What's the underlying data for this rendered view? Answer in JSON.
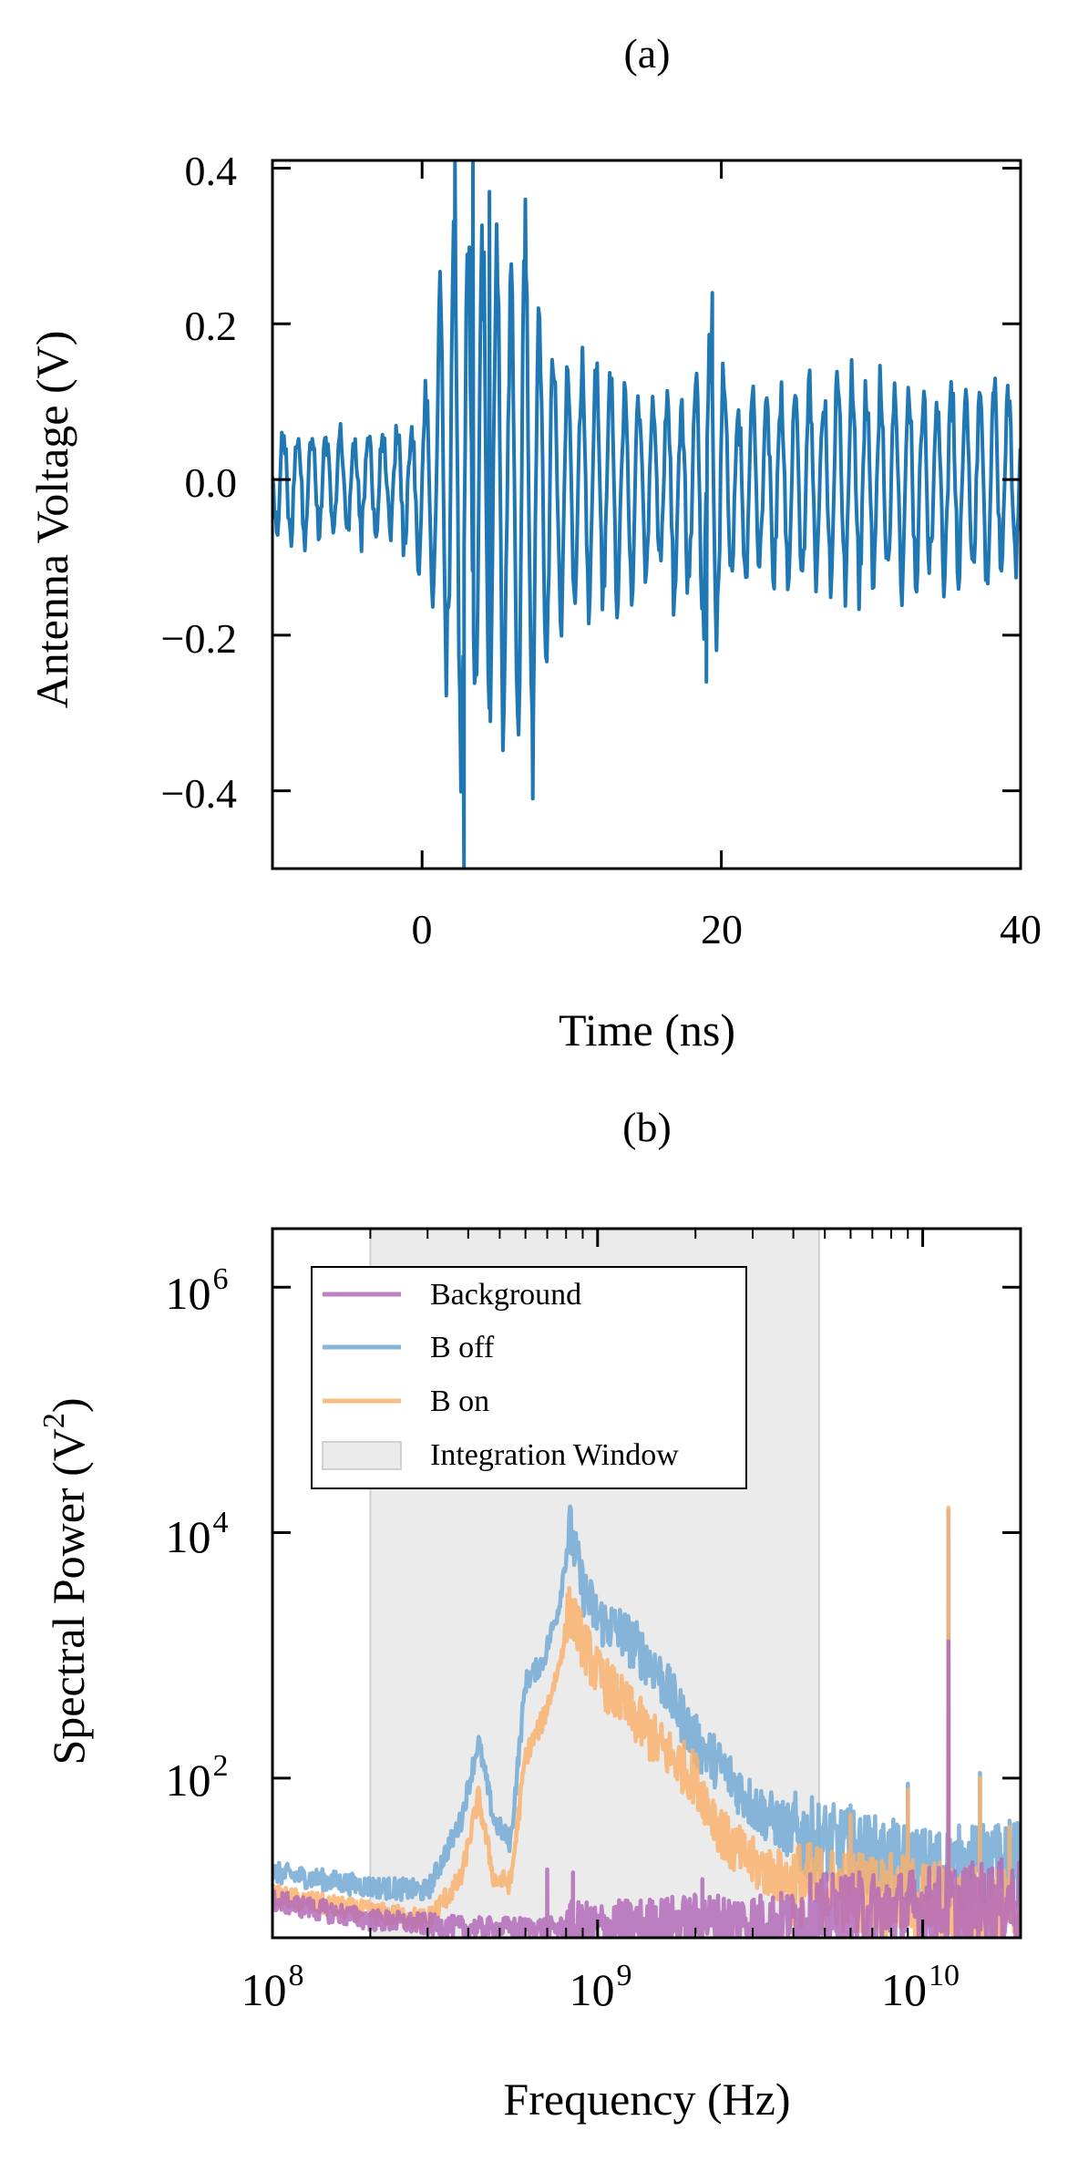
{
  "chart_data": [
    {
      "panel_label": "(a)",
      "type": "line",
      "xlabel": "Time (ns)",
      "ylabel": "Antenna Voltage (V)",
      "xlim": [
        -10,
        40
      ],
      "ylim": [
        -0.5,
        0.41
      ],
      "xticks": [
        0,
        20,
        40
      ],
      "xtick_labels": [
        "0",
        "20",
        "40"
      ],
      "yticks": [
        0.4,
        0.2,
        0.0,
        -0.2,
        -0.4
      ],
      "ytick_labels": [
        "0.4",
        "0.2",
        "0.0",
        "−0.2",
        "−0.4"
      ],
      "series": [
        {
          "name": "Antenna voltage",
          "color": "#1f77b4",
          "envelope": {
            "t": [
              -10,
              -2,
              0,
              1,
              2,
              2.5,
              3,
              4,
              5,
              6,
              7,
              8,
              9,
              10,
              12,
              14,
              16,
              18,
              19.5,
              21,
              24,
              28,
              32,
              36,
              40
            ],
            "upper": [
              0.07,
              0.07,
              0.1,
              0.24,
              0.35,
              0.41,
              0.4,
              0.38,
              0.36,
              0.3,
              0.37,
              0.25,
              0.2,
              0.16,
              0.16,
              0.14,
              0.13,
              0.14,
              0.24,
              0.12,
              0.14,
              0.16,
              0.14,
              0.14,
              0.14
            ],
            "lower": [
              -0.09,
              -0.09,
              -0.14,
              -0.22,
              -0.35,
              -0.5,
              -0.48,
              -0.4,
              -0.39,
              -0.35,
              -0.4,
              -0.3,
              -0.24,
              -0.2,
              -0.19,
              -0.17,
              -0.18,
              -0.2,
              -0.26,
              -0.15,
              -0.17,
              -0.16,
              -0.16,
              -0.15,
              -0.14
            ]
          },
          "peaks": [
            {
              "t": 2.2,
              "v": 0.41
            },
            {
              "t": 3.4,
              "v": 0.41
            },
            {
              "t": 4.5,
              "v": 0.37
            },
            {
              "t": 6.9,
              "v": 0.36
            },
            {
              "t": 19.4,
              "v": 0.24
            },
            {
              "t": 2.8,
              "v": -0.5
            },
            {
              "t": 7.4,
              "v": -0.41
            },
            {
              "t": 19.0,
              "v": -0.26
            }
          ]
        }
      ]
    },
    {
      "panel_label": "(b)",
      "type": "line",
      "xscale": "log",
      "yscale": "log",
      "xlabel": "Frequency (Hz)",
      "ylabel": "Spectral Power (V²)",
      "ylabel_text": "Spectral Power (V",
      "ylabel_sup": "2",
      "ylabel_close": ")",
      "xlim": [
        100000000,
        20000000000
      ],
      "ylim": [
        5,
        3000000
      ],
      "xtick_bases": [
        "10",
        "10",
        "10"
      ],
      "xtick_exps": [
        "8",
        "9",
        "10"
      ],
      "xticks": [
        100000000,
        1000000000,
        10000000000
      ],
      "ytick_bases": [
        "10",
        "10",
        "10"
      ],
      "ytick_exps": [
        "6",
        "4",
        "2"
      ],
      "yticks": [
        1000000,
        10000,
        100
      ],
      "integration_window": {
        "label": "Integration Window",
        "x_start": 200000000,
        "x_end": 4800000000,
        "color": "#ebebeb"
      },
      "legend_location": "upper-left",
      "series": [
        {
          "name": "Background",
          "color": "#b36bb8",
          "opacity": 0.85,
          "x": [
            100000000,
            200000000,
            400000000,
            700000000,
            830000000,
            1000000000,
            1500000000,
            2100000000,
            3000000000,
            5000000000,
            8000000000,
            12000000000,
            20000000000
          ],
          "y": [
            10,
            7,
            6,
            6,
            6,
            6,
            6.5,
            7,
            7,
            7.5,
            8,
            9,
            10
          ],
          "spikes": [
            {
              "x": 700000000,
              "y": 18
            },
            {
              "x": 840000000,
              "y": 17
            },
            {
              "x": 2100000000,
              "y": 15
            },
            {
              "x": 12000000000,
              "y": 1300
            }
          ]
        },
        {
          "name": "B off",
          "color": "#7baed6",
          "opacity": 0.9,
          "x": [
            100000000,
            200000000,
            300000000,
            380000000,
            430000000,
            480000000,
            540000000,
            600000000,
            680000000,
            760000000,
            820000000,
            900000000,
            1000000000,
            1200000000,
            1500000000,
            2000000000,
            2500000000,
            3000000000,
            4000000000,
            6000000000,
            10000000000,
            20000000000
          ],
          "y": [
            17,
            13,
            12,
            45,
            200,
            45,
            30,
            600,
            900,
            2500,
            11000,
            3500,
            2000,
            1500,
            800,
            200,
            110,
            60,
            35,
            25,
            18,
            20
          ],
          "spikes": [
            {
              "x": 6000000000,
              "y": 60
            },
            {
              "x": 9000000000,
              "y": 90
            },
            {
              "x": 12000000000,
              "y": 15000
            },
            {
              "x": 15000000000,
              "y": 110
            },
            {
              "x": 18500000000,
              "y": 45
            }
          ]
        },
        {
          "name": "B on",
          "color": "#f9b26f",
          "opacity": 0.85,
          "x": [
            100000000,
            200000000,
            300000000,
            380000000,
            430000000,
            480000000,
            540000000,
            600000000,
            680000000,
            760000000,
            820000000,
            900000000,
            1000000000,
            1200000000,
            1500000000,
            2000000000,
            2500000000,
            3000000000,
            4000000000,
            6000000000,
            10000000000,
            20000000000
          ],
          "y": [
            11,
            8,
            7,
            15,
            70,
            15,
            14,
            150,
            300,
            800,
            2400,
            1300,
            700,
            400,
            200,
            100,
            30,
            20,
            14,
            12,
            10,
            8
          ],
          "spikes": [
            {
              "x": 6000000000,
              "y": 50
            },
            {
              "x": 9000000000,
              "y": 80
            },
            {
              "x": 12000000000,
              "y": 16000
            },
            {
              "x": 15000000000,
              "y": 100
            },
            {
              "x": 18500000000,
              "y": 40
            }
          ]
        }
      ]
    }
  ]
}
